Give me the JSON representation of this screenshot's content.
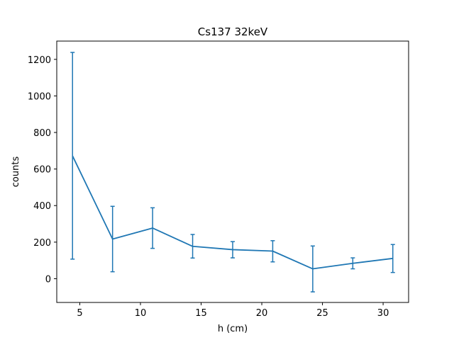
{
  "chart_data": {
    "type": "line",
    "title": "Cs137 32keV",
    "xlabel": "h (cm)",
    "ylabel": "counts",
    "xlim": [
      3.1,
      32.1
    ],
    "ylim": [
      -130,
      1300
    ],
    "xticks": [
      5,
      10,
      15,
      20,
      25,
      30
    ],
    "yticks": [
      0,
      200,
      400,
      600,
      800,
      1000,
      1200
    ],
    "grid": false,
    "color": "#1f77b4",
    "series": [
      {
        "x": [
          4.4,
          7.7,
          11.0,
          14.3,
          17.6,
          20.9,
          24.2,
          27.5,
          30.8
        ],
        "values": [
          672,
          217,
          277,
          177,
          159,
          151,
          54,
          84,
          111
        ],
        "err_low": [
          107,
          38,
          166,
          113,
          114,
          92,
          -72,
          54,
          34
        ],
        "err_high": [
          1238,
          396,
          388,
          242,
          203,
          208,
          179,
          114,
          187
        ]
      }
    ]
  }
}
